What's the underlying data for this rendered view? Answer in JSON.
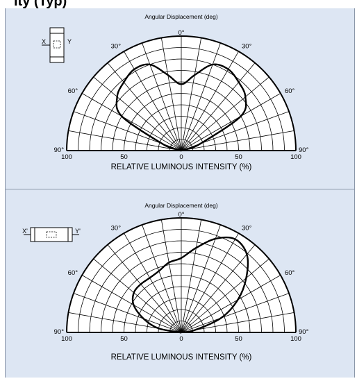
{
  "title": "ity (Typ)",
  "chart_data": [
    {
      "type": "polar",
      "title": "Angular Displacement (deg)",
      "xlabel": "RELATIVE LUMINOUS INTENSITY  (%)",
      "angle_labels": [
        "0°",
        "30°",
        "30°",
        "60°",
        "60°",
        "90°",
        "90°"
      ],
      "radial_tick_labels": [
        "100",
        "50",
        "0",
        "50",
        "100"
      ],
      "angle_range_deg": [
        -90,
        90
      ],
      "r_range_percent": [
        0,
        100
      ],
      "grid": true,
      "inset": {
        "labels": [
          "X",
          "Y"
        ]
      },
      "series": [
        {
          "angles_deg": [
            -90,
            -75,
            -70,
            -60,
            -50,
            -40,
            -30,
            -20,
            -10,
            0,
            10,
            20,
            30,
            40,
            50,
            60,
            70,
            75,
            90
          ],
          "values_percent": [
            0,
            5,
            18,
            60,
            73,
            78,
            82,
            80,
            67,
            58,
            67,
            80,
            82,
            78,
            73,
            60,
            18,
            5,
            0
          ]
        }
      ]
    },
    {
      "type": "polar",
      "title": "Angular Displacement (deg)",
      "xlabel": "RELATIVE LUMINOUS INTENSITY  (%)",
      "angle_labels": [
        "0°",
        "30°",
        "30°",
        "60°",
        "60°",
        "90°",
        "90°"
      ],
      "radial_tick_labels": [
        "100",
        "50",
        "0",
        "50",
        "100"
      ],
      "angle_range_deg": [
        -90,
        90
      ],
      "r_range_percent": [
        0,
        100
      ],
      "grid": true,
      "inset": {
        "labels": [
          "X'",
          "Y'"
        ]
      },
      "series": [
        {
          "angles_deg": [
            -90,
            -80,
            -70,
            -60,
            -50,
            -40,
            -30,
            -20,
            -10,
            0,
            10,
            20,
            30,
            40,
            50,
            60,
            70,
            80,
            90
          ],
          "values_percent": [
            0,
            20,
            35,
            48,
            54,
            55,
            55,
            57,
            62,
            65,
            75,
            87,
            94,
            89,
            74,
            57,
            37,
            12,
            0
          ]
        }
      ]
    }
  ]
}
